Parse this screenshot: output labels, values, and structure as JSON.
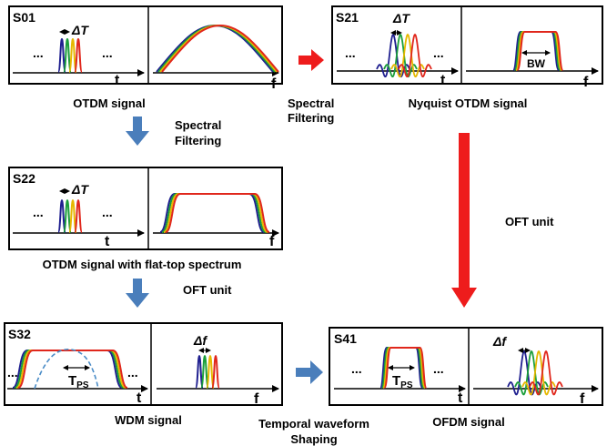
{
  "panels": {
    "s01": {
      "id": "S01",
      "caption": "OTDM signal",
      "delta": "ΔT",
      "dots": "...",
      "t": "t",
      "f": "f"
    },
    "s21": {
      "id": "S21",
      "caption": "Nyquist OTDM signal",
      "delta": "ΔT",
      "dots": "...",
      "t": "t",
      "f": "f",
      "bw": "BW"
    },
    "s22": {
      "id": "S22",
      "caption": "OTDM signal with flat-top spectrum",
      "delta": "ΔT",
      "dots": "...",
      "t": "t",
      "f": "f"
    },
    "s32": {
      "id": "S32",
      "caption": "WDM signal",
      "delta": "Δf",
      "dots": "...",
      "t": "t",
      "f": "f",
      "tps": "T",
      "tps_sub": "PS"
    },
    "s41": {
      "id": "S41",
      "caption": "OFDM signal",
      "delta": "Δf",
      "dots": "...",
      "t": "t",
      "f": "f",
      "tps": "T",
      "tps_sub": "PS"
    }
  },
  "arrows": {
    "spectral_filtering_right": [
      "Spectral",
      "Filtering"
    ],
    "spectral_filtering_down": [
      "Spectral",
      "Filtering"
    ],
    "oft_unit_left": "OFT unit",
    "oft_unit_right": "OFT unit",
    "temporal_shaping": [
      "Temporal waveform",
      "Shaping"
    ]
  },
  "colors": {
    "navy": "#1f1f8f",
    "green": "#1a9e3a",
    "yellow": "#e6b800",
    "red": "#e0271c",
    "blue_arrow": "#4a7ebb",
    "red_arrow": "#ee1c1c",
    "dashed": "#4a8cc7"
  }
}
